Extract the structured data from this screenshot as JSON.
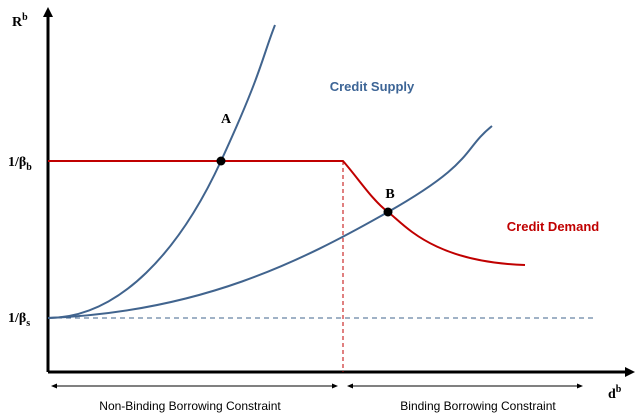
{
  "axes": {
    "y_label": {
      "base": "R",
      "sup": "b"
    },
    "x_label": {
      "base": "d",
      "sup": "b"
    }
  },
  "levels": [
    {
      "base": "1/β",
      "sub": "b"
    },
    {
      "base": "1/β",
      "sub": "s"
    }
  ],
  "points": [
    "A",
    "B"
  ],
  "curves": {
    "supply": "Credit Supply",
    "demand": "Credit Demand"
  },
  "regimes": [
    "Non-Binding Borrowing Constraint",
    "Binding Borrowing Constraint"
  ]
}
